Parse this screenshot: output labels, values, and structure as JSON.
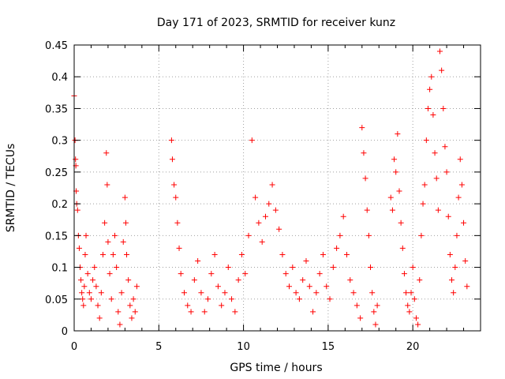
{
  "chart_data": {
    "type": "scatter",
    "title": "Day 171 of 2023, SRMTID for receiver kunz",
    "xlabel": "GPS time / hours",
    "ylabel": "SRMTID / TECUs",
    "xlim": [
      0,
      24
    ],
    "ylim": [
      0,
      0.45
    ],
    "xticks": [
      0,
      5,
      10,
      15,
      20
    ],
    "xtick_labels": [
      "0",
      "5",
      "10",
      "15",
      "20"
    ],
    "yticks": [
      0,
      0.05,
      0.1,
      0.15,
      0.2,
      0.25,
      0.3,
      0.35,
      0.4,
      0.45
    ],
    "ytick_labels": [
      "0",
      "0.05",
      "0.1",
      "0.15",
      "0.2",
      "0.25",
      "0.3",
      "0.35",
      "0.4",
      "0.45"
    ],
    "grid": true,
    "marker": "+",
    "color": "#ff0000",
    "series": [
      {
        "name": "SRMTID",
        "note": "dense scatter; representative sample of visible points",
        "points": [
          [
            0.0,
            0.37
          ],
          [
            0.05,
            0.3
          ],
          [
            0.08,
            0.27
          ],
          [
            0.1,
            0.26
          ],
          [
            0.12,
            0.22
          ],
          [
            0.15,
            0.2
          ],
          [
            0.2,
            0.19
          ],
          [
            0.25,
            0.15
          ],
          [
            0.3,
            0.13
          ],
          [
            0.35,
            0.1
          ],
          [
            0.4,
            0.08
          ],
          [
            0.45,
            0.06
          ],
          [
            0.5,
            0.05
          ],
          [
            0.55,
            0.04
          ],
          [
            0.6,
            0.07
          ],
          [
            0.65,
            0.12
          ],
          [
            0.7,
            0.15
          ],
          [
            0.8,
            0.09
          ],
          [
            0.9,
            0.06
          ],
          [
            1.0,
            0.05
          ],
          [
            1.1,
            0.08
          ],
          [
            1.2,
            0.1
          ],
          [
            1.3,
            0.07
          ],
          [
            1.4,
            0.04
          ],
          [
            1.5,
            0.02
          ],
          [
            1.6,
            0.06
          ],
          [
            1.7,
            0.12
          ],
          [
            1.8,
            0.17
          ],
          [
            1.9,
            0.28
          ],
          [
            1.95,
            0.23
          ],
          [
            2.0,
            0.14
          ],
          [
            2.1,
            0.09
          ],
          [
            2.2,
            0.05
          ],
          [
            2.3,
            0.12
          ],
          [
            2.4,
            0.15
          ],
          [
            2.5,
            0.1
          ],
          [
            2.6,
            0.03
          ],
          [
            2.7,
            0.01
          ],
          [
            2.8,
            0.06
          ],
          [
            2.9,
            0.14
          ],
          [
            3.0,
            0.21
          ],
          [
            3.05,
            0.17
          ],
          [
            3.1,
            0.12
          ],
          [
            3.2,
            0.08
          ],
          [
            3.3,
            0.04
          ],
          [
            3.4,
            0.02
          ],
          [
            3.5,
            0.05
          ],
          [
            3.6,
            0.03
          ],
          [
            3.7,
            0.07
          ],
          [
            5.75,
            0.3
          ],
          [
            5.8,
            0.27
          ],
          [
            5.9,
            0.23
          ],
          [
            6.0,
            0.21
          ],
          [
            6.1,
            0.17
          ],
          [
            6.2,
            0.13
          ],
          [
            6.3,
            0.09
          ],
          [
            6.5,
            0.06
          ],
          [
            6.7,
            0.04
          ],
          [
            6.9,
            0.03
          ],
          [
            7.1,
            0.08
          ],
          [
            7.3,
            0.11
          ],
          [
            7.5,
            0.06
          ],
          [
            7.7,
            0.03
          ],
          [
            7.9,
            0.05
          ],
          [
            8.1,
            0.09
          ],
          [
            8.3,
            0.12
          ],
          [
            8.5,
            0.07
          ],
          [
            8.7,
            0.04
          ],
          [
            8.9,
            0.06
          ],
          [
            9.1,
            0.1
          ],
          [
            9.3,
            0.05
          ],
          [
            9.5,
            0.03
          ],
          [
            9.7,
            0.08
          ],
          [
            9.9,
            0.12
          ],
          [
            10.1,
            0.09
          ],
          [
            10.3,
            0.15
          ],
          [
            10.5,
            0.3
          ],
          [
            10.7,
            0.21
          ],
          [
            10.9,
            0.17
          ],
          [
            11.1,
            0.14
          ],
          [
            11.3,
            0.18
          ],
          [
            11.5,
            0.2
          ],
          [
            11.7,
            0.23
          ],
          [
            11.9,
            0.19
          ],
          [
            12.1,
            0.16
          ],
          [
            12.3,
            0.12
          ],
          [
            12.5,
            0.09
          ],
          [
            12.7,
            0.07
          ],
          [
            12.9,
            0.1
          ],
          [
            13.1,
            0.06
          ],
          [
            13.3,
            0.05
          ],
          [
            13.5,
            0.08
          ],
          [
            13.7,
            0.11
          ],
          [
            13.9,
            0.07
          ],
          [
            14.1,
            0.03
          ],
          [
            14.3,
            0.06
          ],
          [
            14.5,
            0.09
          ],
          [
            14.7,
            0.12
          ],
          [
            14.9,
            0.07
          ],
          [
            15.1,
            0.05
          ],
          [
            15.3,
            0.1
          ],
          [
            15.5,
            0.13
          ],
          [
            15.7,
            0.15
          ],
          [
            15.9,
            0.18
          ],
          [
            16.1,
            0.12
          ],
          [
            16.3,
            0.08
          ],
          [
            16.5,
            0.06
          ],
          [
            16.7,
            0.04
          ],
          [
            16.9,
            0.02
          ],
          [
            17.0,
            0.32
          ],
          [
            17.1,
            0.28
          ],
          [
            17.2,
            0.24
          ],
          [
            17.3,
            0.19
          ],
          [
            17.4,
            0.15
          ],
          [
            17.5,
            0.1
          ],
          [
            17.6,
            0.06
          ],
          [
            17.7,
            0.03
          ],
          [
            17.8,
            0.01
          ],
          [
            17.9,
            0.04
          ],
          [
            18.7,
            0.21
          ],
          [
            18.8,
            0.19
          ],
          [
            18.9,
            0.27
          ],
          [
            19.0,
            0.25
          ],
          [
            19.1,
            0.31
          ],
          [
            19.2,
            0.22
          ],
          [
            19.3,
            0.17
          ],
          [
            19.4,
            0.13
          ],
          [
            19.5,
            0.09
          ],
          [
            19.6,
            0.06
          ],
          [
            19.7,
            0.04
          ],
          [
            19.8,
            0.03
          ],
          [
            19.9,
            0.06
          ],
          [
            20.0,
            0.1
          ],
          [
            20.1,
            0.05
          ],
          [
            20.2,
            0.02
          ],
          [
            20.3,
            0.01
          ],
          [
            20.4,
            0.08
          ],
          [
            20.5,
            0.15
          ],
          [
            20.6,
            0.2
          ],
          [
            20.7,
            0.23
          ],
          [
            20.8,
            0.3
          ],
          [
            20.9,
            0.35
          ],
          [
            21.0,
            0.38
          ],
          [
            21.1,
            0.4
          ],
          [
            21.2,
            0.34
          ],
          [
            21.3,
            0.28
          ],
          [
            21.4,
            0.24
          ],
          [
            21.5,
            0.19
          ],
          [
            21.6,
            0.44
          ],
          [
            21.7,
            0.41
          ],
          [
            21.8,
            0.35
          ],
          [
            21.9,
            0.29
          ],
          [
            22.0,
            0.25
          ],
          [
            22.1,
            0.18
          ],
          [
            22.2,
            0.12
          ],
          [
            22.3,
            0.08
          ],
          [
            22.4,
            0.06
          ],
          [
            22.5,
            0.1
          ],
          [
            22.6,
            0.15
          ],
          [
            22.7,
            0.21
          ],
          [
            22.8,
            0.27
          ],
          [
            22.9,
            0.23
          ],
          [
            23.0,
            0.17
          ],
          [
            23.1,
            0.11
          ],
          [
            23.2,
            0.07
          ]
        ]
      }
    ]
  }
}
